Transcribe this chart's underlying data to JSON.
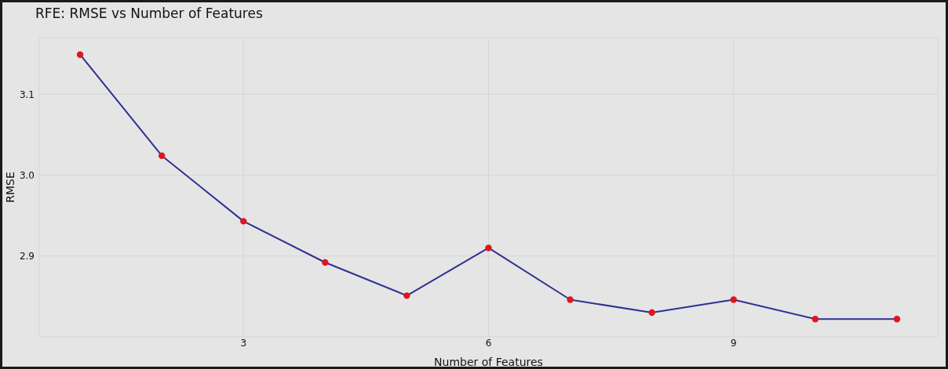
{
  "chart_data": {
    "type": "line",
    "title": "RFE: RMSE vs Number of Features",
    "xlabel": "Number of Features",
    "ylabel": "RMSE",
    "x": [
      1,
      2,
      3,
      4,
      5,
      6,
      7,
      8,
      9,
      10,
      11
    ],
    "series": [
      {
        "color": "#2e3192",
        "colors": [
          "#e0161e",
          "#e0161e",
          "#e0161e",
          "#e0161e",
          "#e0161e",
          "#e0161e",
          "#e0161e",
          "#e0161e",
          "#e0161e",
          "#e0161e",
          "#e0161e"
        ],
        "values": [
          3.149,
          3.024,
          2.943,
          2.892,
          2.851,
          2.91,
          2.846,
          2.83,
          2.846,
          2.822,
          2.822
        ]
      }
    ],
    "xlim": [
      0.5,
      11.5
    ],
    "xticks": [
      3,
      6,
      9
    ],
    "ylim": [
      2.8,
      3.17
    ],
    "yticks": [
      2.9,
      {
        "value": 3.0,
        "label": "3.0"
      },
      3.1
    ],
    "grid": true,
    "marker": "circle",
    "line_style": "solid"
  }
}
